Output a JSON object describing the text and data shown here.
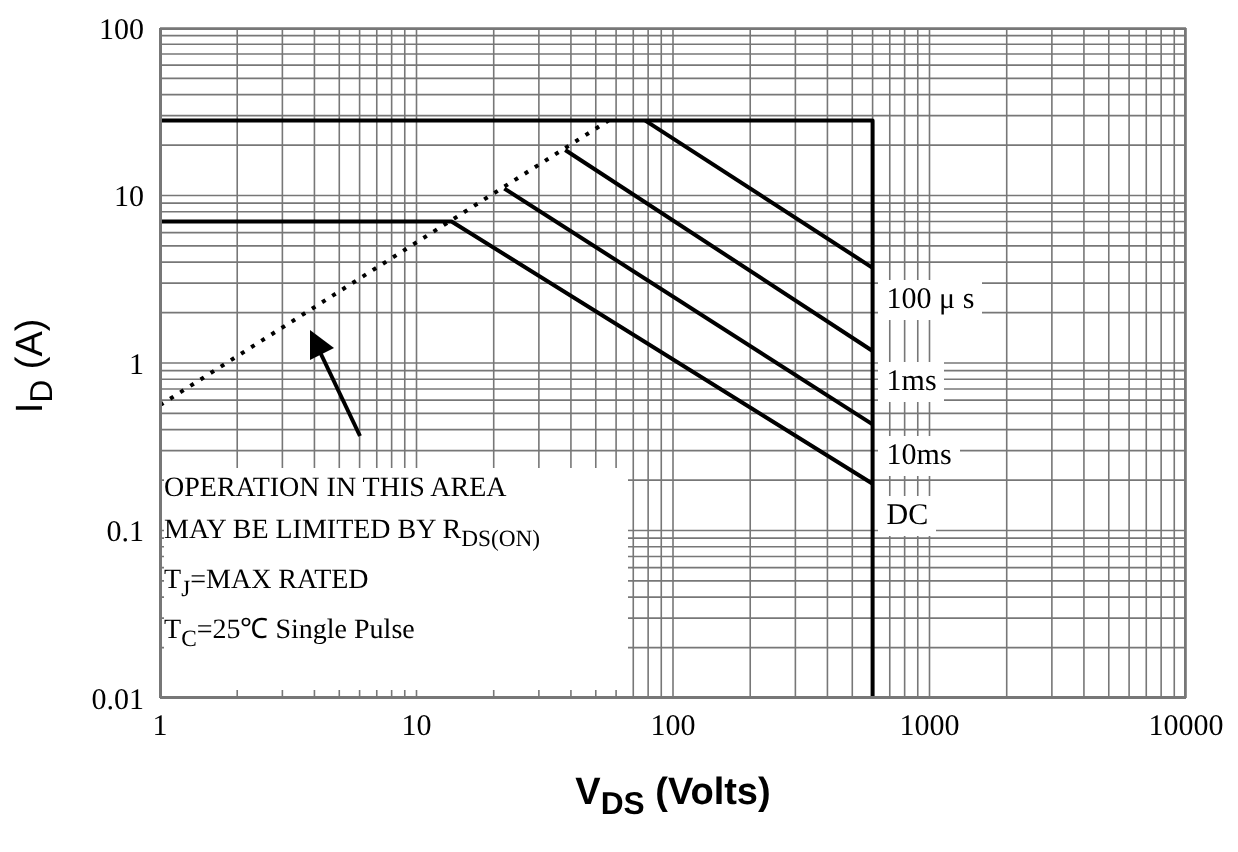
{
  "chart_data": {
    "type": "line",
    "xlabel": "V$_{DS}$ (Volts)",
    "ylabel": "I$_{D}$ (A)",
    "log": "xy",
    "grid": true,
    "legend": false,
    "marker": "none",
    "xlim": [
      1,
      10000
    ],
    "ylim": [
      0.01,
      100
    ],
    "xticks": [
      1,
      {
        "value": 2,
        "label": null
      },
      {
        "value": 3,
        "label": null
      },
      {
        "value": 4,
        "label": null
      },
      {
        "value": 5,
        "label": null
      },
      {
        "value": 6,
        "label": null
      },
      {
        "value": 7,
        "label": null
      },
      {
        "value": 8,
        "label": null
      },
      {
        "value": 9,
        "label": null
      },
      10,
      {
        "value": 20,
        "label": null
      },
      {
        "value": 30,
        "label": null
      },
      {
        "value": 40,
        "label": null
      },
      {
        "value": 50,
        "label": null
      },
      {
        "value": 60,
        "label": null
      },
      {
        "value": 70,
        "label": null
      },
      {
        "value": 80,
        "label": null
      },
      {
        "value": 90,
        "label": null
      },
      100,
      {
        "value": 200,
        "label": null
      },
      {
        "value": 300,
        "label": null
      },
      {
        "value": 400,
        "label": null
      },
      {
        "value": 500,
        "label": null
      },
      {
        "value": 600,
        "label": null
      },
      {
        "value": 700,
        "label": null
      },
      {
        "value": 800,
        "label": null
      },
      {
        "value": 900,
        "label": null
      },
      1000,
      {
        "value": 2000,
        "label": null
      },
      {
        "value": 3000,
        "label": null
      },
      {
        "value": 4000,
        "label": null
      },
      {
        "value": 5000,
        "label": null
      },
      {
        "value": 6000,
        "label": null
      },
      {
        "value": 7000,
        "label": null
      },
      {
        "value": 8000,
        "label": null
      },
      {
        "value": 9000,
        "label": null
      },
      10000
    ],
    "yticks": [
      0.01,
      {
        "value": 0.02,
        "label": null
      },
      {
        "value": 0.03,
        "label": null
      },
      {
        "value": 0.04,
        "label": null
      },
      {
        "value": 0.05,
        "label": null
      },
      {
        "value": 0.06,
        "label": null
      },
      {
        "value": 0.07,
        "label": null
      },
      {
        "value": 0.08,
        "label": null
      },
      {
        "value": 0.09,
        "label": null
      },
      0.1,
      {
        "value": 0.2,
        "label": null
      },
      {
        "value": 0.3,
        "label": null
      },
      {
        "value": 0.4,
        "label": null
      },
      {
        "value": 0.5,
        "label": null
      },
      {
        "value": 0.6,
        "label": null
      },
      {
        "value": 0.7,
        "label": null
      },
      {
        "value": 0.8,
        "label": null
      },
      {
        "value": 0.9,
        "label": null
      },
      1,
      {
        "value": 2,
        "label": null
      },
      {
        "value": 3,
        "label": null
      },
      {
        "value": 4,
        "label": null
      },
      {
        "value": 5,
        "label": null
      },
      {
        "value": 6,
        "label": null
      },
      {
        "value": 7,
        "label": null
      },
      {
        "value": 8,
        "label": null
      },
      {
        "value": 9,
        "label": null
      },
      10,
      {
        "value": 20,
        "label": null
      },
      {
        "value": 30,
        "label": null
      },
      {
        "value": 40,
        "label": null
      },
      {
        "value": 50,
        "label": null
      },
      {
        "value": 60,
        "label": null
      },
      {
        "value": 70,
        "label": null
      },
      {
        "value": 80,
        "label": null
      },
      {
        "value": 90,
        "label": null
      },
      100
    ],
    "series": [
      {
        "color": "#000000",
        "x": [
          1,
          600,
          600
        ],
        "values": [
          28,
          28,
          0.01
        ]
      },
      {
        "color": "#000000",
        "line_style": "dotted",
        "x": [
          1,
          56
        ],
        "values": [
          0.56,
          28
        ]
      },
      {
        "name": "100 μ s",
        "color": "#000000",
        "x": [
          78,
          600
        ],
        "values": [
          28,
          3.7
        ]
      },
      {
        "name": "1ms",
        "color": "#000000",
        "x": [
          38,
          600
        ],
        "values": [
          18.7,
          1.18
        ]
      },
      {
        "name": "10ms",
        "color": "#000000",
        "x": [
          22,
          600
        ],
        "values": [
          11,
          0.43
        ]
      },
      {
        "name": "DC",
        "color": "#000000",
        "x": [
          1,
          13.7,
          600
        ],
        "values": [
          7,
          7,
          0.19
        ]
      }
    ],
    "annotations": [
      "OPERATION IN THIS AREA",
      "MAY BE LIMITED BY R$_{DS(ON)}$",
      "T$_{J}$=MAX RATED",
      "T$_{C}$=25℃  Single Pulse"
    ]
  }
}
